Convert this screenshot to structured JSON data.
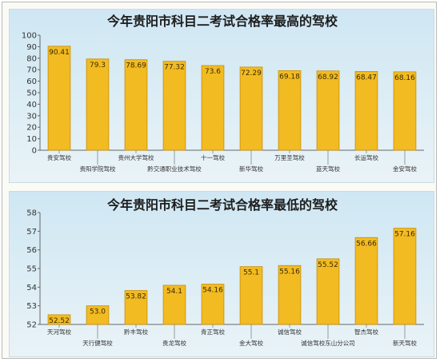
{
  "chart_data": [
    {
      "type": "bar",
      "title": "今年贵阳市科目二考试合格率最高的驾校",
      "categories": [
        "贵安驾校",
        "贵阳学院驾校",
        "贵州大学驾校",
        "黔交通职业技术驾校",
        "十一驾校",
        "新华驾校",
        "万里圣驾校",
        "蓝天驾校",
        "长运驾校",
        "金安驾校"
      ],
      "values": [
        90.41,
        79.3,
        78.69,
        77.32,
        73.6,
        72.29,
        69.18,
        68.92,
        68.47,
        68.16
      ],
      "value_labels": [
        "90.41",
        "79.3",
        "78.69",
        "77.32",
        "73.6",
        "72.29",
        "69.18",
        "68.92",
        "68.47",
        "68.16"
      ],
      "ylim": [
        0,
        100
      ],
      "yticks": [
        0,
        10,
        20,
        30,
        40,
        50,
        60,
        70,
        80,
        90,
        100
      ],
      "grid": false,
      "colors": {
        "bar": "#f2bb22",
        "bar_edge": "#c98d07"
      }
    },
    {
      "type": "bar",
      "title": "今年贵阳市科目二考试合格率最低的驾校",
      "categories": [
        "天河驾校",
        "天行健驾校",
        "黔丰驾校",
        "贵龙驾校",
        "青正驾校",
        "金大驾校",
        "诚信驾校",
        "诚信驾校东山分公司",
        "智杰驾校",
        "新天驾校"
      ],
      "values": [
        52.52,
        53.0,
        53.82,
        54.1,
        54.16,
        55.1,
        55.16,
        55.52,
        56.66,
        57.16
      ],
      "value_labels": [
        "52.52",
        "53.0",
        "53.82",
        "54.1",
        "54.16",
        "55.1",
        "55.16",
        "55.52",
        "56.66",
        "57.16"
      ],
      "ylim": [
        52,
        58
      ],
      "yticks": [
        52,
        53,
        54,
        55,
        56,
        57,
        58
      ],
      "grid": false,
      "colors": {
        "bar": "#f2bb22",
        "bar_edge": "#c98d07"
      }
    }
  ]
}
